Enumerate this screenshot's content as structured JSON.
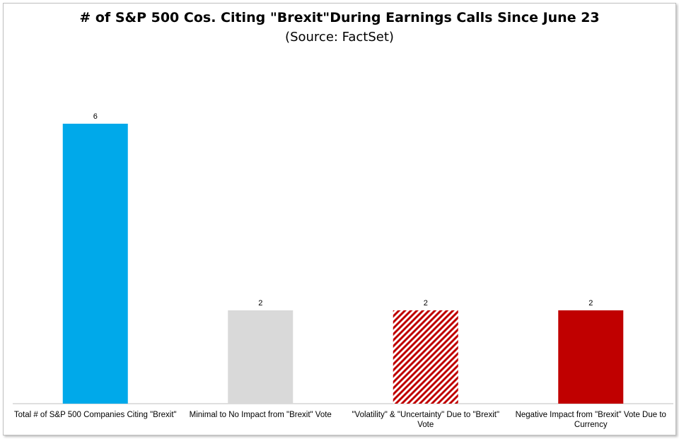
{
  "chart_data": {
    "type": "bar",
    "title": "# of S&P 500 Cos. Citing \"Brexit\"During Earnings Calls Since June 23",
    "subtitle": "(Source: FactSet)",
    "categories": [
      "Total # of S&P 500 Companies Citing \"Brexit\"",
      "Minimal to No Impact from \"Brexit\" Vote",
      "\"Volatility\" & \"Uncertainty\" Due to \"Brexit\" Vote",
      "Negative Impact from \"Brexit\" Vote Due to Currency"
    ],
    "values": [
      6,
      2,
      2,
      2
    ],
    "data_labels": [
      "6",
      "2",
      "2",
      "2"
    ],
    "colors": [
      "#00a9ea",
      "#d9d9d9",
      "#c00000",
      "#c00000"
    ],
    "fills": [
      "solid",
      "solid",
      "hatched",
      "solid"
    ],
    "ylim": [
      0,
      6
    ],
    "grid": false,
    "xlabel": "",
    "ylabel": ""
  }
}
